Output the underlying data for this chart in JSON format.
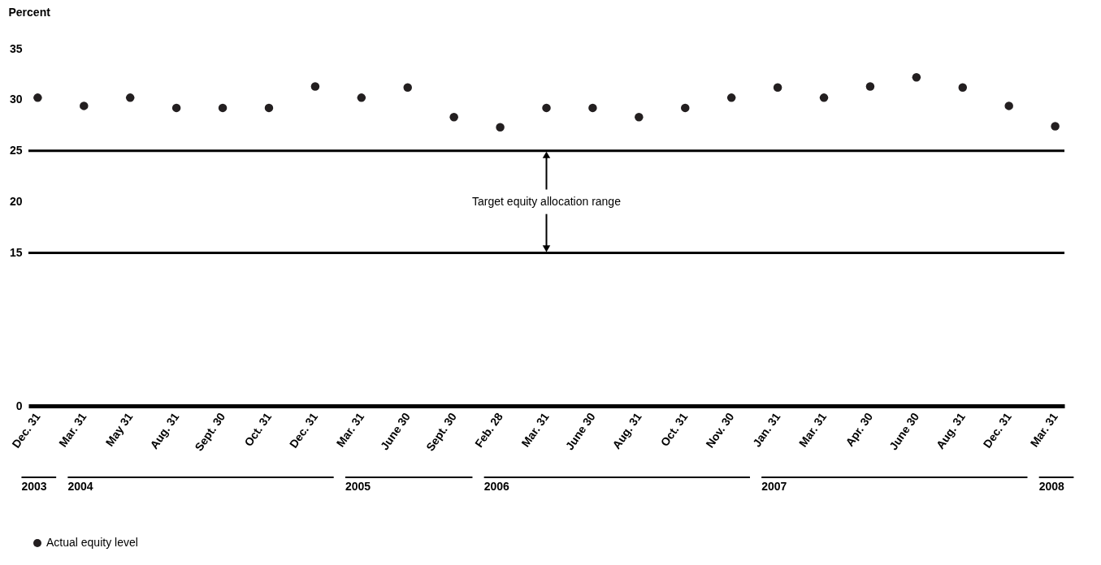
{
  "chart_data": {
    "type": "scatter",
    "ylabel": "Percent",
    "categories": [
      "Dec. 31",
      "Mar. 31",
      "May 31",
      "Aug. 31",
      "Sept. 30",
      "Oct. 31",
      "Dec. 31",
      "Mar. 31",
      "June 30",
      "Sept. 30",
      "Feb. 28",
      "Mar. 31",
      "June 30",
      "Aug. 31",
      "Oct. 31",
      "Nov. 30",
      "Jan. 31",
      "Mar. 31",
      "Apr. 30",
      "June 30",
      "Aug. 31",
      "Dec. 31",
      "Mar. 31"
    ],
    "series": [
      {
        "name": "Actual equity level",
        "color": "#231f20",
        "values": [
          30.2,
          29.4,
          30.2,
          29.2,
          29.2,
          29.2,
          31.3,
          30.2,
          31.2,
          28.3,
          27.3,
          29.2,
          29.2,
          28.3,
          29.2,
          30.2,
          31.2,
          30.2,
          31.3,
          32.2,
          31.2,
          29.4,
          27.4
        ]
      }
    ],
    "ylim": [
      0,
      35
    ],
    "yticks": [
      0,
      15,
      20,
      25,
      30,
      35
    ],
    "ref_lines": [
      {
        "axis": "y",
        "value": 25,
        "color": "#000000"
      },
      {
        "axis": "y",
        "value": 15,
        "color": "#000000"
      }
    ],
    "annotations": [
      {
        "text": "Target equity allocation range",
        "y": 25
      },
      "2003",
      "2004",
      "2005",
      "2006",
      "2007",
      "2008"
    ],
    "marker": "circle",
    "grid": false,
    "legend": "bottom"
  }
}
